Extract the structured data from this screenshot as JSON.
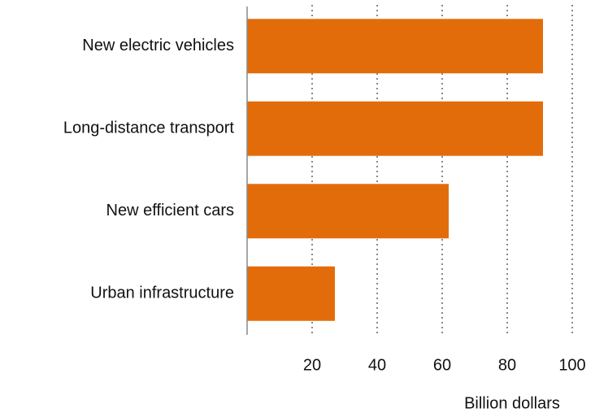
{
  "chart_data": {
    "type": "bar",
    "orientation": "horizontal",
    "categories": [
      "New electric vehicles",
      "Long-distance transport",
      "New efficient cars",
      "Urban infrastructure"
    ],
    "values": [
      91,
      91,
      62,
      27
    ],
    "color": "#e36c0a",
    "xlabel": "Billion dollars",
    "xlim": [
      0,
      100
    ],
    "xticks": [
      20,
      40,
      60,
      80,
      100
    ],
    "grid": true
  }
}
